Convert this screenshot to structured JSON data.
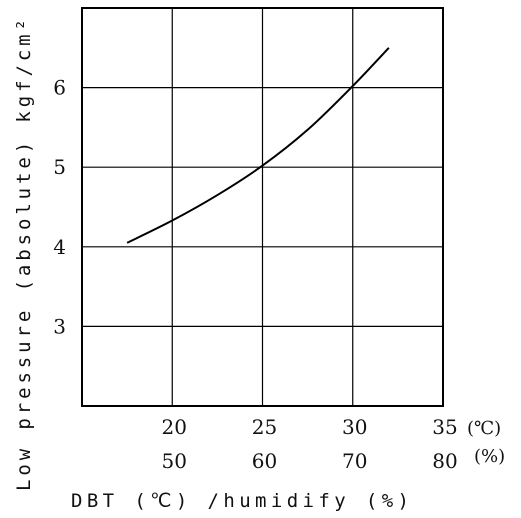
{
  "chart_data": {
    "type": "line",
    "title": "",
    "xlabel": "DBT (℃) /humidify (%)",
    "ylabel": "Low pressure (absolute) kgf/cm²",
    "x_unit_temp": "(℃)",
    "x_unit_humidity": "(%)",
    "xlim": [
      15,
      35
    ],
    "ylim": [
      2,
      7
    ],
    "x_ticks_temp": [
      "20",
      "25",
      "30",
      "35"
    ],
    "x_ticks_humidity": [
      "50",
      "60",
      "70",
      "80"
    ],
    "x_tick_values": [
      20,
      25,
      30,
      35
    ],
    "y_ticks": [
      "3",
      "4",
      "5",
      "6"
    ],
    "y_tick_values": [
      3,
      4,
      5,
      6
    ],
    "grid": true,
    "series": [
      {
        "x": [
          17.5,
          20,
          22.5,
          25,
          27.5,
          30,
          32
        ],
        "y": [
          4.05,
          4.33,
          4.65,
          5.02,
          5.47,
          6.02,
          6.5
        ]
      }
    ]
  }
}
